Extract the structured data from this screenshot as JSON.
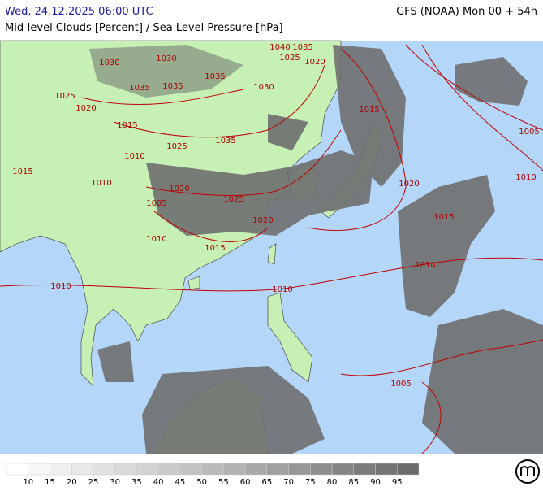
{
  "header": {
    "datetime": "Wed, 24.12.2025 06:00 UTC",
    "model": "GFS (NOAA) Mon 00 + 54h",
    "title": "Mid-level Clouds [Percent] / Sea Level Pressure [hPa]"
  },
  "isobar_labels": [
    "1030",
    "1030",
    "1040",
    "1035",
    "1025",
    "1020",
    "1035",
    "1035",
    "1035",
    "1030",
    "1025",
    "1020",
    "1015",
    "1015",
    "1035",
    "1025",
    "1010",
    "1015",
    "1010",
    "1020",
    "1025",
    "1005",
    "1020",
    "1010",
    "1005",
    "1015",
    "1020",
    "1010",
    "1015",
    "1010",
    "1010",
    "1010",
    "1005"
  ],
  "legend": {
    "labels": [
      10,
      15,
      20,
      25,
      30,
      35,
      40,
      45,
      50,
      55,
      60,
      65,
      70,
      75,
      80,
      85,
      90,
      95
    ],
    "colors": [
      "#ffffff",
      "#f7f7f7",
      "#f0f0f0",
      "#e8e8e8",
      "#e1e1e1",
      "#d9d9d9",
      "#d2d2d2",
      "#cacaca",
      "#c2c2c2",
      "#bababa",
      "#b2b2b2",
      "#a9a9a9",
      "#a0a0a0",
      "#979797",
      "#8e8e8e",
      "#858585",
      "#7c7c7c",
      "#737373",
      "#6a6a6a"
    ]
  }
}
